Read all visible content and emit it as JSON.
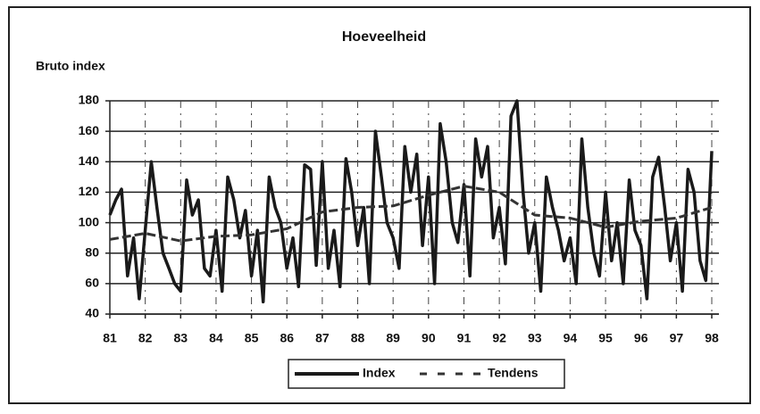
{
  "chart_data": {
    "type": "line",
    "title": "Hoeveelheid",
    "y_label": "Bruto index",
    "xlim": [
      81,
      98
    ],
    "xticks": [
      81,
      82,
      83,
      84,
      85,
      86,
      87,
      88,
      89,
      90,
      91,
      92,
      93,
      94,
      95,
      96,
      97,
      98
    ],
    "ylim": [
      40,
      180
    ],
    "yticks": [
      40,
      60,
      80,
      100,
      120,
      140,
      160,
      180
    ],
    "grid": true,
    "series": [
      {
        "name": "Index",
        "color": "#1a1a1a",
        "dashed": false,
        "x": [
          81,
          81.17,
          81.33,
          81.5,
          81.67,
          81.83,
          82,
          82.17,
          82.33,
          82.5,
          82.67,
          82.83,
          83,
          83.17,
          83.33,
          83.5,
          83.67,
          83.83,
          84,
          84.17,
          84.33,
          84.5,
          84.67,
          84.83,
          85,
          85.17,
          85.33,
          85.5,
          85.67,
          85.83,
          86,
          86.17,
          86.33,
          86.5,
          86.67,
          86.83,
          87,
          87.17,
          87.33,
          87.5,
          87.67,
          87.83,
          88,
          88.17,
          88.33,
          88.5,
          88.67,
          88.83,
          89,
          89.17,
          89.33,
          89.5,
          89.67,
          89.83,
          90,
          90.17,
          90.33,
          90.5,
          90.67,
          90.83,
          91,
          91.17,
          91.33,
          91.5,
          91.67,
          91.83,
          92,
          92.17,
          92.33,
          92.5,
          92.67,
          92.83,
          93,
          93.17,
          93.33,
          93.5,
          93.67,
          93.83,
          94,
          94.17,
          94.33,
          94.5,
          94.67,
          94.83,
          95,
          95.17,
          95.33,
          95.5,
          95.67,
          95.83,
          96,
          96.17,
          96.33,
          96.5,
          96.67,
          96.83,
          97,
          97.17,
          97.33,
          97.5,
          97.67,
          97.83,
          98
        ],
        "values": [
          105,
          115,
          122,
          65,
          90,
          50,
          95,
          140,
          110,
          80,
          70,
          60,
          55,
          128,
          105,
          115,
          70,
          65,
          95,
          55,
          130,
          115,
          90,
          108,
          65,
          95,
          48,
          130,
          110,
          100,
          70,
          90,
          58,
          138,
          135,
          72,
          140,
          70,
          95,
          58,
          142,
          120,
          85,
          110,
          60,
          160,
          130,
          100,
          90,
          70,
          150,
          120,
          145,
          85,
          130,
          60,
          165,
          140,
          100,
          87,
          125,
          65,
          155,
          130,
          150,
          90,
          110,
          73,
          170,
          180,
          120,
          80,
          100,
          55,
          130,
          110,
          95,
          75,
          90,
          60,
          155,
          110,
          80,
          65,
          120,
          75,
          100,
          60,
          128,
          95,
          85,
          50,
          130,
          143,
          110,
          75,
          100,
          55,
          135,
          120,
          75,
          62,
          147
        ]
      },
      {
        "name": "Tendens",
        "color": "#333333",
        "dashed": true,
        "x": [
          81,
          82,
          83,
          84,
          85,
          86,
          87,
          88,
          89,
          90,
          91,
          92,
          93,
          94,
          95,
          96,
          97,
          98
        ],
        "values": [
          89,
          93,
          88,
          91,
          92,
          96,
          107,
          110,
          111,
          118,
          124,
          120,
          105,
          103,
          97,
          101,
          103,
          110
        ]
      }
    ]
  }
}
